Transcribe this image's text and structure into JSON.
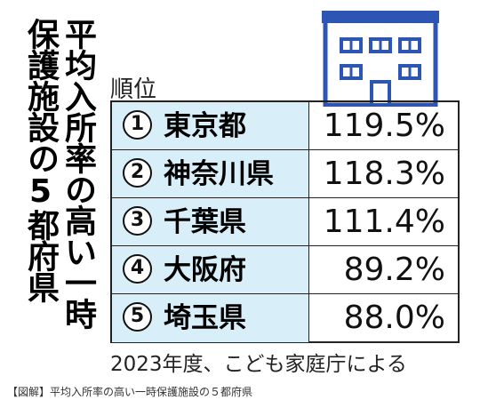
{
  "title": {
    "line1": "平均入所率の高い一時",
    "line2": "保護施設の5都府県"
  },
  "icon": "building-icon",
  "colors": {
    "building_blue": "#2d55b3",
    "name_cell_bg": "#d8eef8"
  },
  "table": {
    "header": "順位",
    "rows": [
      {
        "rank": "1",
        "prefecture": "東京都",
        "rate": "119.5%"
      },
      {
        "rank": "2",
        "prefecture": "神奈川県",
        "rate": "118.3%"
      },
      {
        "rank": "3",
        "prefecture": "千葉県",
        "rate": "111.4%"
      },
      {
        "rank": "4",
        "prefecture": "大阪府",
        "rate": "89.2%"
      },
      {
        "rank": "5",
        "prefecture": "埼玉県",
        "rate": "88.0%"
      }
    ]
  },
  "source": "2023年度、こども家庭庁による",
  "caption": "【図解】平均入所率の高い一時保護施設の５都府県"
}
